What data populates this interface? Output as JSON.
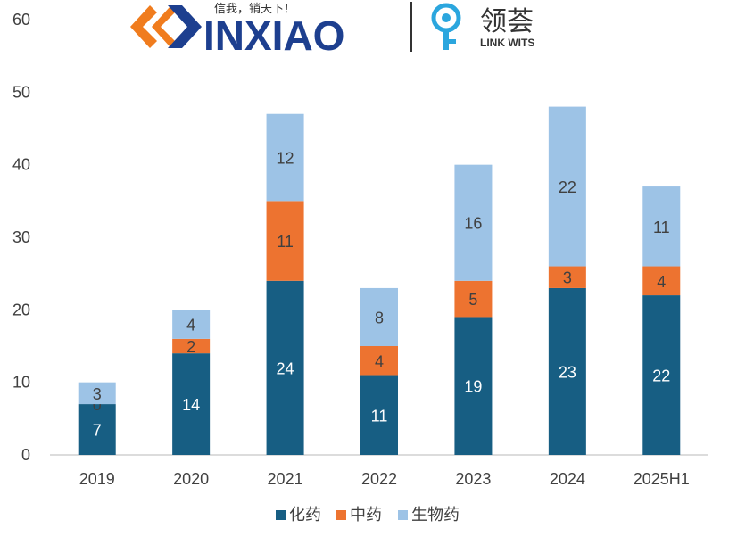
{
  "logos": {
    "left": {
      "wordmark": "INXIAO",
      "tagline": "信我，销天下！"
    },
    "right": {
      "name": "领荟",
      "subtitle": "LINK WITS"
    }
  },
  "chart_data": {
    "type": "bar",
    "stacked": true,
    "categories": [
      "2019",
      "2020",
      "2021",
      "2022",
      "2023",
      "2024",
      "2025H1"
    ],
    "series": [
      {
        "name": "化药",
        "color": "#175E83",
        "values": [
          7,
          14,
          24,
          11,
          19,
          23,
          22
        ]
      },
      {
        "name": "中药",
        "color": "#ED7330",
        "values": [
          0,
          2,
          11,
          4,
          5,
          3,
          4
        ]
      },
      {
        "name": "生物药",
        "color": "#9DC3E6",
        "values": [
          3,
          4,
          12,
          8,
          16,
          22,
          11
        ]
      }
    ],
    "yticks": [
      0,
      10,
      20,
      30,
      40,
      50,
      60
    ],
    "ylim": [
      0,
      60
    ],
    "legend_position": "bottom",
    "grid": false
  }
}
